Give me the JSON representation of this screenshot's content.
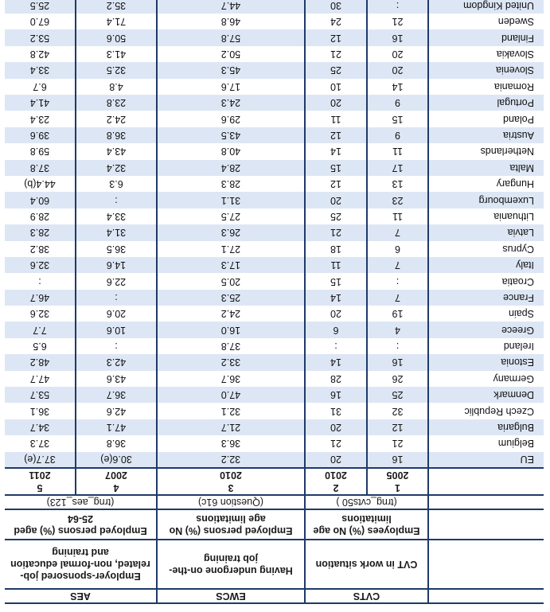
{
  "header": {
    "groups": [
      "",
      "CVTS",
      "EWCS",
      "AES"
    ],
    "descriptions": [
      "",
      "CVT in work situation",
      "Having undergone on-the-job training",
      "Employer-sponsored job-related, non-formal education and training"
    ],
    "units": [
      "",
      "Employees (%) No age limitations",
      "Employed persons (%) No age limitations",
      "Employed persons (%) aged 25-64"
    ],
    "sources": [
      "",
      "(trng_cvts50 )",
      "(Question 61c)",
      "(trng_aes_123)"
    ],
    "numbers": [
      "",
      "1",
      "2",
      "3",
      "4",
      "5"
    ],
    "years": [
      "",
      "2005",
      "2010",
      "2010",
      "2007",
      "2011"
    ]
  },
  "rows": [
    {
      "country": "EU",
      "c1": "16",
      "c2": "20",
      "c3": "32.2",
      "c4": "30.6(e)",
      "c5": "37.7(e)"
    },
    {
      "country": "Belgium",
      "c1": "21",
      "c2": "21",
      "c3": "36.3",
      "c4": "36.8",
      "c5": "37.3"
    },
    {
      "country": "Bulgaria",
      "c1": "12",
      "c2": "20",
      "c3": "21.7",
      "c4": "47.1",
      "c5": "34.7"
    },
    {
      "country": "Czech Republic",
      "c1": "32",
      "c2": "31",
      "c3": "32.1",
      "c4": "42.6",
      "c5": "36.1"
    },
    {
      "country": "Denmark",
      "c1": "25",
      "c2": "16",
      "c3": "47.0",
      "c4": "36.7",
      "c5": "53.7"
    },
    {
      "country": "Germany",
      "c1": "26",
      "c2": "28",
      "c3": "36.7",
      "c4": "43.6",
      "c5": "47.7"
    },
    {
      "country": "Estonia",
      "c1": "16",
      "c2": "14",
      "c3": "33.2",
      "c4": "42.3",
      "c5": "48.2"
    },
    {
      "country": "Ireland",
      "c1": ":",
      "c2": ":",
      "c3": "37.8",
      "c4": ":",
      "c5": "6.5"
    },
    {
      "country": "Greece",
      "c1": "4",
      "c2": "6",
      "c3": "16.0",
      "c4": "10.6",
      "c5": "7.7"
    },
    {
      "country": "Spain",
      "c1": "19",
      "c2": "20",
      "c3": "24.2",
      "c4": "20.6",
      "c5": "32.6"
    },
    {
      "country": "France",
      "c1": "7",
      "c2": "14",
      "c3": "25.3",
      "c4": ":",
      "c5": "46.7"
    },
    {
      "country": "Croatia",
      "c1": ":",
      "c2": "15",
      "c3": "20.5",
      "c4": "22.6",
      "c5": ":"
    },
    {
      "country": "Italy",
      "c1": "7",
      "c2": "11",
      "c3": "17.3",
      "c4": "14.6",
      "c5": "32.6"
    },
    {
      "country": "Cyprus",
      "c1": "6",
      "c2": "18",
      "c3": "27.1",
      "c4": "36.5",
      "c5": "38.2"
    },
    {
      "country": "Latvia",
      "c1": "7",
      "c2": "21",
      "c3": "26.3",
      "c4": "31.4",
      "c5": "28.3"
    },
    {
      "country": "Lithuania",
      "c1": "11",
      "c2": "25",
      "c3": "27.5",
      "c4": "33.4",
      "c5": "28.9"
    },
    {
      "country": "Luxembourg",
      "c1": "23",
      "c2": "20",
      "c3": "31.1",
      "c4": ":",
      "c5": "60.4"
    },
    {
      "country": "Hungary",
      "c1": "13",
      "c2": "12",
      "c3": "28.3",
      "c4": "6.3",
      "c5": "44.4(b)"
    },
    {
      "country": "Malta",
      "c1": "17",
      "c2": "15",
      "c3": "28.4",
      "c4": "32.4",
      "c5": "37.8"
    },
    {
      "country": "Netherlands",
      "c1": "11",
      "c2": "14",
      "c3": "40.8",
      "c4": "43.4",
      "c5": "59.8"
    },
    {
      "country": "Austria",
      "c1": "9",
      "c2": "12",
      "c3": "43.5",
      "c4": "36.8",
      "c5": "39.6"
    },
    {
      "country": "Poland",
      "c1": "15",
      "c2": "11",
      "c3": "29.6",
      "c4": "24.2",
      "c5": "23.4"
    },
    {
      "country": "Portugal",
      "c1": "9",
      "c2": "20",
      "c3": "24.3",
      "c4": "23.8",
      "c5": "41.4"
    },
    {
      "country": "Romania",
      "c1": "14",
      "c2": "10",
      "c3": "17.6",
      "c4": "4.8",
      "c5": "6.7"
    },
    {
      "country": "Slovenia",
      "c1": "20",
      "c2": "25",
      "c3": "45.3",
      "c4": "32.5",
      "c5": "33.4"
    },
    {
      "country": "Slovakia",
      "c1": "20",
      "c2": "21",
      "c3": "50.2",
      "c4": "41.3",
      "c5": "42.8"
    },
    {
      "country": "Finland",
      "c1": "16",
      "c2": "12",
      "c3": "57.8",
      "c4": "50.6",
      "c5": "53.2"
    },
    {
      "country": "Sweden",
      "c1": "21",
      "c2": "24",
      "c3": "46.8",
      "c4": "71.4",
      "c5": "67.0"
    },
    {
      "country": "United Kingdom",
      "c1": ":",
      "c2": "30",
      "c3": "44.7",
      "c4": "35.2",
      "c5": "25.5"
    }
  ]
}
